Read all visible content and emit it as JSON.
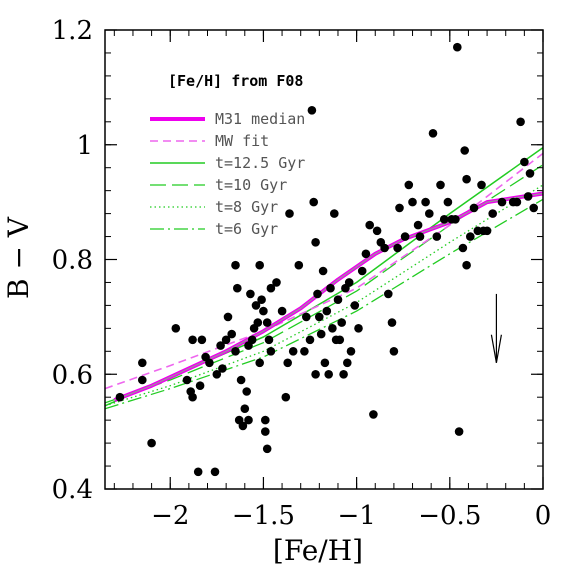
{
  "chart_data": {
    "type": "scatter",
    "xlabel": "[Fe/H]",
    "ylabel": "B − V",
    "xlim": [
      -2.35,
      0
    ],
    "ylim": [
      0.4,
      1.2
    ],
    "xticks": [
      "-2",
      "-1.5",
      "-1",
      "-0.5",
      "0"
    ],
    "yticks": [
      "0.4",
      "0.6",
      "0.8",
      "1",
      "1.2"
    ],
    "legend": {
      "title": "[Fe/H] from F08",
      "entries": [
        {
          "label": "M31 median",
          "color": "#ee00ee",
          "style": "thick-solid"
        },
        {
          "label": "MW fit",
          "color": "#ee88ee",
          "style": "dashed"
        },
        {
          "label": "t=12.5 Gyr",
          "color": "#22cc22",
          "style": "solid"
        },
        {
          "label": "t=10 Gyr",
          "color": "#22cc22",
          "style": "long-dash"
        },
        {
          "label": "t=8 Gyr",
          "color": "#22cc22",
          "style": "dotted"
        },
        {
          "label": "t=6 Gyr",
          "color": "#22cc22",
          "style": "dash-dot"
        }
      ]
    },
    "points": [
      [
        -2.27,
        0.56
      ],
      [
        -2.15,
        0.62
      ],
      [
        -2.15,
        0.59
      ],
      [
        -2.1,
        0.48
      ],
      [
        -1.97,
        0.68
      ],
      [
        -1.91,
        0.59
      ],
      [
        -1.89,
        0.57
      ],
      [
        -1.88,
        0.56
      ],
      [
        -1.88,
        0.66
      ],
      [
        -1.85,
        0.43
      ],
      [
        -1.84,
        0.58
      ],
      [
        -1.83,
        0.66
      ],
      [
        -1.81,
        0.63
      ],
      [
        -1.79,
        0.62
      ],
      [
        -1.76,
        0.43
      ],
      [
        -1.75,
        0.6
      ],
      [
        -1.73,
        0.65
      ],
      [
        -1.72,
        0.61
      ],
      [
        -1.7,
        0.66
      ],
      [
        -1.69,
        0.7
      ],
      [
        -1.67,
        0.67
      ],
      [
        -1.65,
        0.79
      ],
      [
        -1.65,
        0.64
      ],
      [
        -1.64,
        0.75
      ],
      [
        -1.63,
        0.52
      ],
      [
        -1.62,
        0.59
      ],
      [
        -1.61,
        0.51
      ],
      [
        -1.6,
        0.54
      ],
      [
        -1.59,
        0.57
      ],
      [
        -1.58,
        0.52
      ],
      [
        -1.58,
        0.65
      ],
      [
        -1.57,
        0.74
      ],
      [
        -1.56,
        0.66
      ],
      [
        -1.55,
        0.68
      ],
      [
        -1.54,
        0.72
      ],
      [
        -1.53,
        0.69
      ],
      [
        -1.52,
        0.62
      ],
      [
        -1.52,
        0.79
      ],
      [
        -1.51,
        0.73
      ],
      [
        -1.5,
        0.71
      ],
      [
        -1.49,
        0.5
      ],
      [
        -1.49,
        0.52
      ],
      [
        -1.48,
        0.47
      ],
      [
        -1.48,
        0.69
      ],
      [
        -1.47,
        0.66
      ],
      [
        -1.46,
        0.64
      ],
      [
        -1.46,
        0.75
      ],
      [
        -1.43,
        0.76
      ],
      [
        -1.4,
        0.71
      ],
      [
        -1.38,
        0.56
      ],
      [
        -1.37,
        0.62
      ],
      [
        -1.36,
        0.88
      ],
      [
        -1.34,
        0.64
      ],
      [
        -1.31,
        0.79
      ],
      [
        -1.28,
        0.64
      ],
      [
        -1.27,
        0.7
      ],
      [
        -1.25,
        0.66
      ],
      [
        -1.24,
        1.06
      ],
      [
        -1.23,
        0.9
      ],
      [
        -1.22,
        0.83
      ],
      [
        -1.22,
        0.6
      ],
      [
        -1.21,
        0.74
      ],
      [
        -1.2,
        0.7
      ],
      [
        -1.19,
        0.67
      ],
      [
        -1.18,
        0.78
      ],
      [
        -1.17,
        0.62
      ],
      [
        -1.16,
        0.71
      ],
      [
        -1.15,
        0.6
      ],
      [
        -1.14,
        0.75
      ],
      [
        -1.13,
        0.68
      ],
      [
        -1.12,
        0.88
      ],
      [
        -1.11,
        0.66
      ],
      [
        -1.1,
        0.73
      ],
      [
        -1.09,
        0.66
      ],
      [
        -1.08,
        0.69
      ],
      [
        -1.07,
        0.6
      ],
      [
        -1.06,
        0.75
      ],
      [
        -1.05,
        0.62
      ],
      [
        -1.04,
        0.76
      ],
      [
        -1.03,
        0.64
      ],
      [
        -1.01,
        0.72
      ],
      [
        -0.99,
        0.68
      ],
      [
        -0.97,
        0.78
      ],
      [
        -0.95,
        0.81
      ],
      [
        -0.93,
        0.86
      ],
      [
        -0.91,
        0.53
      ],
      [
        -0.89,
        0.85
      ],
      [
        -0.87,
        0.83
      ],
      [
        -0.85,
        0.82
      ],
      [
        -0.83,
        0.74
      ],
      [
        -0.81,
        0.69
      ],
      [
        -0.8,
        0.64
      ],
      [
        -0.78,
        0.82
      ],
      [
        -0.77,
        0.89
      ],
      [
        -0.74,
        0.84
      ],
      [
        -0.72,
        0.93
      ],
      [
        -0.7,
        0.9
      ],
      [
        -0.67,
        0.86
      ],
      [
        -0.66,
        0.84
      ],
      [
        -0.63,
        0.9
      ],
      [
        -0.61,
        0.88
      ],
      [
        -0.59,
        1.02
      ],
      [
        -0.57,
        0.84
      ],
      [
        -0.55,
        0.93
      ],
      [
        -0.53,
        0.87
      ],
      [
        -0.51,
        0.9
      ],
      [
        -0.49,
        0.87
      ],
      [
        -0.47,
        0.87
      ],
      [
        -0.46,
        1.17
      ],
      [
        -0.45,
        0.5
      ],
      [
        -0.43,
        0.82
      ],
      [
        -0.42,
        0.99
      ],
      [
        -0.41,
        0.94
      ],
      [
        -0.41,
        0.79
      ],
      [
        -0.39,
        0.84
      ],
      [
        -0.37,
        0.89
      ],
      [
        -0.35,
        0.85
      ],
      [
        -0.33,
        0.93
      ],
      [
        -0.32,
        0.85
      ],
      [
        -0.3,
        0.85
      ],
      [
        -0.27,
        0.88
      ],
      [
        -0.22,
        0.9
      ],
      [
        -0.16,
        0.9
      ],
      [
        -0.14,
        0.9
      ],
      [
        -0.12,
        1.04
      ],
      [
        -0.1,
        0.97
      ],
      [
        -0.08,
        0.91
      ],
      [
        -0.07,
        0.95
      ],
      [
        -0.05,
        0.89
      ]
    ],
    "curves": {
      "m31_median": [
        [
          -2.3,
          0.555
        ],
        [
          -2.1,
          0.58
        ],
        [
          -1.9,
          0.61
        ],
        [
          -1.7,
          0.64
        ],
        [
          -1.5,
          0.675
        ],
        [
          -1.3,
          0.715
        ],
        [
          -1.1,
          0.765
        ],
        [
          -0.9,
          0.81
        ],
        [
          -0.75,
          0.835
        ],
        [
          -0.5,
          0.865
        ],
        [
          -0.3,
          0.9
        ],
        [
          -0.1,
          0.91
        ],
        [
          0.0,
          0.915
        ]
      ],
      "mw_fit": [
        [
          -2.35,
          0.575
        ],
        [
          -2.0,
          0.615
        ],
        [
          -1.5,
          0.675
        ],
        [
          -1.0,
          0.75
        ],
        [
          -0.5,
          0.86
        ],
        [
          0.0,
          0.985
        ]
      ],
      "t12_5": [
        [
          -2.35,
          0.545
        ],
        [
          -2.0,
          0.595
        ],
        [
          -1.5,
          0.665
        ],
        [
          -1.0,
          0.76
        ],
        [
          -0.5,
          0.88
        ],
        [
          0.0,
          0.995
        ]
      ],
      "t10": [
        [
          -2.35,
          0.55
        ],
        [
          -2.0,
          0.59
        ],
        [
          -1.5,
          0.655
        ],
        [
          -1.0,
          0.745
        ],
        [
          -0.5,
          0.86
        ],
        [
          0.0,
          0.965
        ]
      ],
      "t8": [
        [
          -2.35,
          0.545
        ],
        [
          -2.0,
          0.58
        ],
        [
          -1.5,
          0.64
        ],
        [
          -1.0,
          0.725
        ],
        [
          -0.5,
          0.83
        ],
        [
          0.0,
          0.93
        ]
      ],
      "t6": [
        [
          -2.35,
          0.54
        ],
        [
          -2.0,
          0.575
        ],
        [
          -1.5,
          0.63
        ],
        [
          -1.0,
          0.71
        ],
        [
          -0.5,
          0.81
        ],
        [
          0.0,
          0.905
        ]
      ]
    },
    "arrow": {
      "x": -0.25,
      "y_from": 0.74,
      "y_to": 0.62
    }
  }
}
